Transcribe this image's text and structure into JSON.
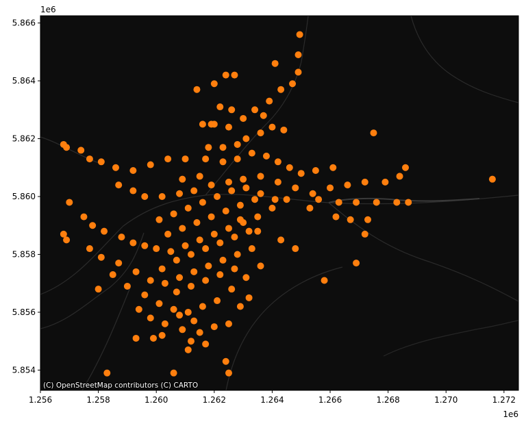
{
  "chart_data": {
    "type": "scatter",
    "title": "",
    "xlabel": "",
    "ylabel": "",
    "xlim": [
      1256000,
      1272500
    ],
    "ylim": [
      5853300,
      5866250
    ],
    "x_offset_label": "1e6",
    "y_offset_label": "1e6",
    "xticks": [
      1256000,
      1258000,
      1260000,
      1262000,
      1264000,
      1266000,
      1268000,
      1270000,
      1272000
    ],
    "xtick_labels": [
      "1.256",
      "1.258",
      "1.260",
      "1.262",
      "1.264",
      "1.266",
      "1.268",
      "1.270",
      "1.272"
    ],
    "yticks": [
      5854000,
      5856000,
      5858000,
      5860000,
      5862000,
      5864000,
      5866000
    ],
    "ytick_labels": [
      "5.854",
      "5.856",
      "5.858",
      "5.860",
      "5.862",
      "5.864",
      "5.866"
    ],
    "grid": false,
    "basemap": "CartoDB dark matter",
    "attribution": "(C) OpenStreetMap contributors (C) CARTO",
    "series": [
      {
        "name": "points",
        "color": "#ff7f0e",
        "points": [
          [
            1256800,
            5861800
          ],
          [
            1256900,
            5861700
          ],
          [
            1257400,
            5861600
          ],
          [
            1257700,
            5861300
          ],
          [
            1258100,
            5861200
          ],
          [
            1258600,
            5861000
          ],
          [
            1259200,
            5860900
          ],
          [
            1259800,
            5861100
          ],
          [
            1260400,
            5861300
          ],
          [
            1261000,
            5861300
          ],
          [
            1261700,
            5861300
          ],
          [
            1262300,
            5861200
          ],
          [
            1261600,
            5862500
          ],
          [
            1261900,
            5862500
          ],
          [
            1262500,
            5862400
          ],
          [
            1263000,
            5862700
          ],
          [
            1263400,
            5863000
          ],
          [
            1263900,
            5863300
          ],
          [
            1264300,
            5863700
          ],
          [
            1264700,
            5863900
          ],
          [
            1264900,
            5864300
          ],
          [
            1264900,
            5864900
          ],
          [
            1264950,
            5865600
          ],
          [
            1264100,
            5864600
          ],
          [
            1262400,
            5864200
          ],
          [
            1262700,
            5864200
          ],
          [
            1262000,
            5863900
          ],
          [
            1261400,
            5863700
          ],
          [
            1262200,
            5863100
          ],
          [
            1262600,
            5863000
          ],
          [
            1262000,
            5862500
          ],
          [
            1258700,
            5860400
          ],
          [
            1259200,
            5860200
          ],
          [
            1259600,
            5860000
          ],
          [
            1260200,
            5860000
          ],
          [
            1260800,
            5860100
          ],
          [
            1261300,
            5860200
          ],
          [
            1261900,
            5860400
          ],
          [
            1262500,
            5860500
          ],
          [
            1263000,
            5860600
          ],
          [
            1263600,
            5860700
          ],
          [
            1264200,
            5860500
          ],
          [
            1264800,
            5860300
          ],
          [
            1265400,
            5860100
          ],
          [
            1266000,
            5860300
          ],
          [
            1266600,
            5860400
          ],
          [
            1267200,
            5860500
          ],
          [
            1267900,
            5860500
          ],
          [
            1268400,
            5860700
          ],
          [
            1268600,
            5861000
          ],
          [
            1271600,
            5860600
          ],
          [
            1267500,
            5862200
          ],
          [
            1265600,
            5859900
          ],
          [
            1266300,
            5859800
          ],
          [
            1266900,
            5859800
          ],
          [
            1267600,
            5859800
          ],
          [
            1268300,
            5859800
          ],
          [
            1268700,
            5859800
          ],
          [
            1266200,
            5859300
          ],
          [
            1266700,
            5859200
          ],
          [
            1267300,
            5859200
          ],
          [
            1267200,
            5858700
          ],
          [
            1265800,
            5857100
          ],
          [
            1266900,
            5857700
          ],
          [
            1257000,
            5859800
          ],
          [
            1256900,
            5858500
          ],
          [
            1256800,
            5858700
          ],
          [
            1257500,
            5859300
          ],
          [
            1257800,
            5859000
          ],
          [
            1258200,
            5858800
          ],
          [
            1258800,
            5858600
          ],
          [
            1259200,
            5858400
          ],
          [
            1259600,
            5858300
          ],
          [
            1260000,
            5858200
          ],
          [
            1260500,
            5858100
          ],
          [
            1261000,
            5858300
          ],
          [
            1261500,
            5858500
          ],
          [
            1262000,
            5858700
          ],
          [
            1262500,
            5858900
          ],
          [
            1263000,
            5859100
          ],
          [
            1263500,
            5859300
          ],
          [
            1264000,
            5859600
          ],
          [
            1264500,
            5859900
          ],
          [
            1257700,
            5858200
          ],
          [
            1258100,
            5857900
          ],
          [
            1258700,
            5857700
          ],
          [
            1259300,
            5857400
          ],
          [
            1259800,
            5857100
          ],
          [
            1260300,
            5857000
          ],
          [
            1260800,
            5857200
          ],
          [
            1261300,
            5857400
          ],
          [
            1261800,
            5857600
          ],
          [
            1262300,
            5857800
          ],
          [
            1262800,
            5858000
          ],
          [
            1263300,
            5858200
          ],
          [
            1258500,
            5857300
          ],
          [
            1259000,
            5856900
          ],
          [
            1259600,
            5856600
          ],
          [
            1260100,
            5856300
          ],
          [
            1260600,
            5856100
          ],
          [
            1261100,
            5856000
          ],
          [
            1261600,
            5856200
          ],
          [
            1262100,
            5856400
          ],
          [
            1262600,
            5856800
          ],
          [
            1263100,
            5857200
          ],
          [
            1263600,
            5857600
          ],
          [
            1259400,
            5856100
          ],
          [
            1259800,
            5855800
          ],
          [
            1260300,
            5855600
          ],
          [
            1260900,
            5855400
          ],
          [
            1261500,
            5855300
          ],
          [
            1262000,
            5855500
          ],
          [
            1262500,
            5855600
          ],
          [
            1261200,
            5855000
          ],
          [
            1261700,
            5854900
          ],
          [
            1262400,
            5854300
          ],
          [
            1262500,
            5853900
          ],
          [
            1261100,
            5854700
          ],
          [
            1260200,
            5855200
          ],
          [
            1259900,
            5855100
          ],
          [
            1260600,
            5853900
          ],
          [
            1258000,
            5856800
          ],
          [
            1258300,
            5853900
          ],
          [
            1259300,
            5855100
          ],
          [
            1260100,
            5859200
          ],
          [
            1260600,
            5859400
          ],
          [
            1261100,
            5859600
          ],
          [
            1261600,
            5859800
          ],
          [
            1262100,
            5860000
          ],
          [
            1262600,
            5860200
          ],
          [
            1263100,
            5860300
          ],
          [
            1263600,
            5860100
          ],
          [
            1264100,
            5859900
          ],
          [
            1260400,
            5858700
          ],
          [
            1260900,
            5858900
          ],
          [
            1261400,
            5859100
          ],
          [
            1261900,
            5859300
          ],
          [
            1262400,
            5859500
          ],
          [
            1262900,
            5859700
          ],
          [
            1263400,
            5859900
          ],
          [
            1260700,
            5857800
          ],
          [
            1261200,
            5858000
          ],
          [
            1261700,
            5858200
          ],
          [
            1262200,
            5858400
          ],
          [
            1262700,
            5858600
          ],
          [
            1263200,
            5858800
          ],
          [
            1260200,
            5857500
          ],
          [
            1260700,
            5856700
          ],
          [
            1261200,
            5856900
          ],
          [
            1261700,
            5857100
          ],
          [
            1262200,
            5857300
          ],
          [
            1262700,
            5857500
          ],
          [
            1262900,
            5856200
          ],
          [
            1263200,
            5856500
          ],
          [
            1261300,
            5855700
          ],
          [
            1260800,
            5855900
          ],
          [
            1262800,
            5861300
          ],
          [
            1263300,
            5861500
          ],
          [
            1263800,
            5861400
          ],
          [
            1264200,
            5861200
          ],
          [
            1264600,
            5861000
          ],
          [
            1263100,
            5862000
          ],
          [
            1263600,
            5862200
          ],
          [
            1264000,
            5862400
          ],
          [
            1263700,
            5862800
          ],
          [
            1264400,
            5862300
          ],
          [
            1261800,
            5861700
          ],
          [
            1262300,
            5861700
          ],
          [
            1262800,
            5861800
          ],
          [
            1261500,
            5860700
          ],
          [
            1260900,
            5860600
          ],
          [
            1262900,
            5859200
          ],
          [
            1263500,
            5858800
          ],
          [
            1264300,
            5858500
          ],
          [
            1264800,
            5858200
          ],
          [
            1265300,
            5859600
          ],
          [
            1265000,
            5860800
          ],
          [
            1265500,
            5860900
          ],
          [
            1266100,
            5861000
          ]
        ]
      }
    ]
  }
}
